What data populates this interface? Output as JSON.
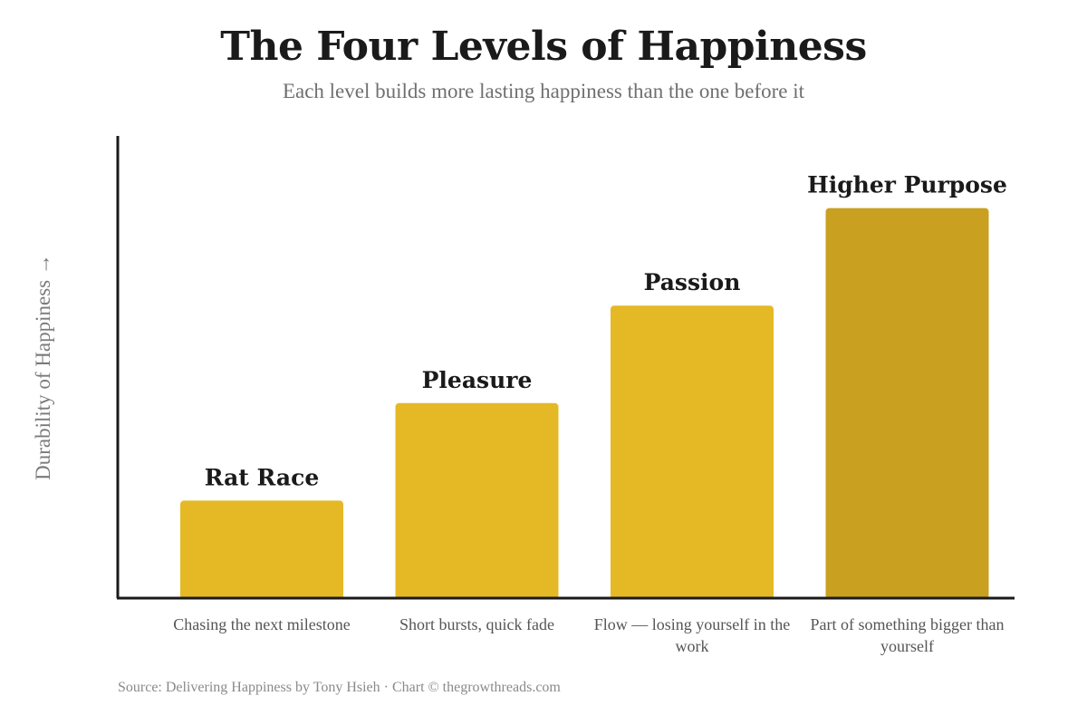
{
  "chart_data": {
    "type": "bar",
    "title": "The Four Levels of Happiness",
    "subtitle": "Each level builds more lasting happiness than the one before it",
    "xlabel": "",
    "ylabel": "Durability of Happiness →",
    "categories": [
      "Rat Race",
      "Pleasure",
      "Passion",
      "Higher Purpose"
    ],
    "descriptions": [
      "Chasing the next milestone",
      "Short bursts, quick fade",
      "Flow — losing yourself in the work",
      "Part of something bigger than yourself"
    ],
    "values": [
      1,
      2,
      3,
      4
    ],
    "ylim": [
      0,
      4.74
    ],
    "colors": [
      "#E5B925",
      "#E5B925",
      "#E5B925",
      "#C9A020"
    ],
    "grid": false,
    "legend": "none",
    "source": "Source: Delivering Happiness by Tony Hsieh · Chart © thegrowthreads.com"
  }
}
